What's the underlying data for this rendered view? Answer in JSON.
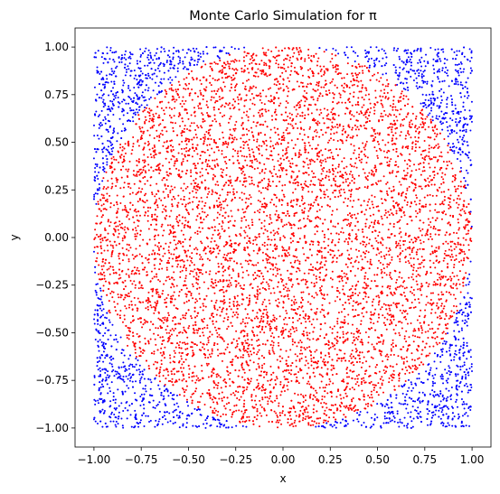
{
  "chart_data": {
    "type": "scatter",
    "title": "Monte Carlo Simulation for π",
    "xlabel": "x",
    "ylabel": "y",
    "xlim": [
      -1.1,
      1.1
    ],
    "ylim": [
      -1.1,
      1.1
    ],
    "xticks": [
      -1.0,
      -0.75,
      -0.5,
      -0.25,
      0.0,
      0.25,
      0.5,
      0.75,
      1.0
    ],
    "yticks": [
      -1.0,
      -0.75,
      -0.5,
      -0.25,
      0.0,
      0.25,
      0.5,
      0.75,
      1.0
    ],
    "xtick_labels": [
      "−1.00",
      "−0.75",
      "−0.50",
      "−0.25",
      "0.00",
      "0.25",
      "0.50",
      "0.75",
      "1.00"
    ],
    "ytick_labels": [
      "−1.00",
      "−0.75",
      "−0.50",
      "−0.25",
      "0.00",
      "0.25",
      "0.50",
      "0.75",
      "1.00"
    ],
    "grid": false,
    "legend": false,
    "point_count": 10000,
    "series": [
      {
        "color": "#ff0000",
        "rule": "x^2 + y^2 <= 1"
      },
      {
        "color": "#0000ff",
        "rule": "x^2 + y^2 > 1"
      }
    ]
  }
}
